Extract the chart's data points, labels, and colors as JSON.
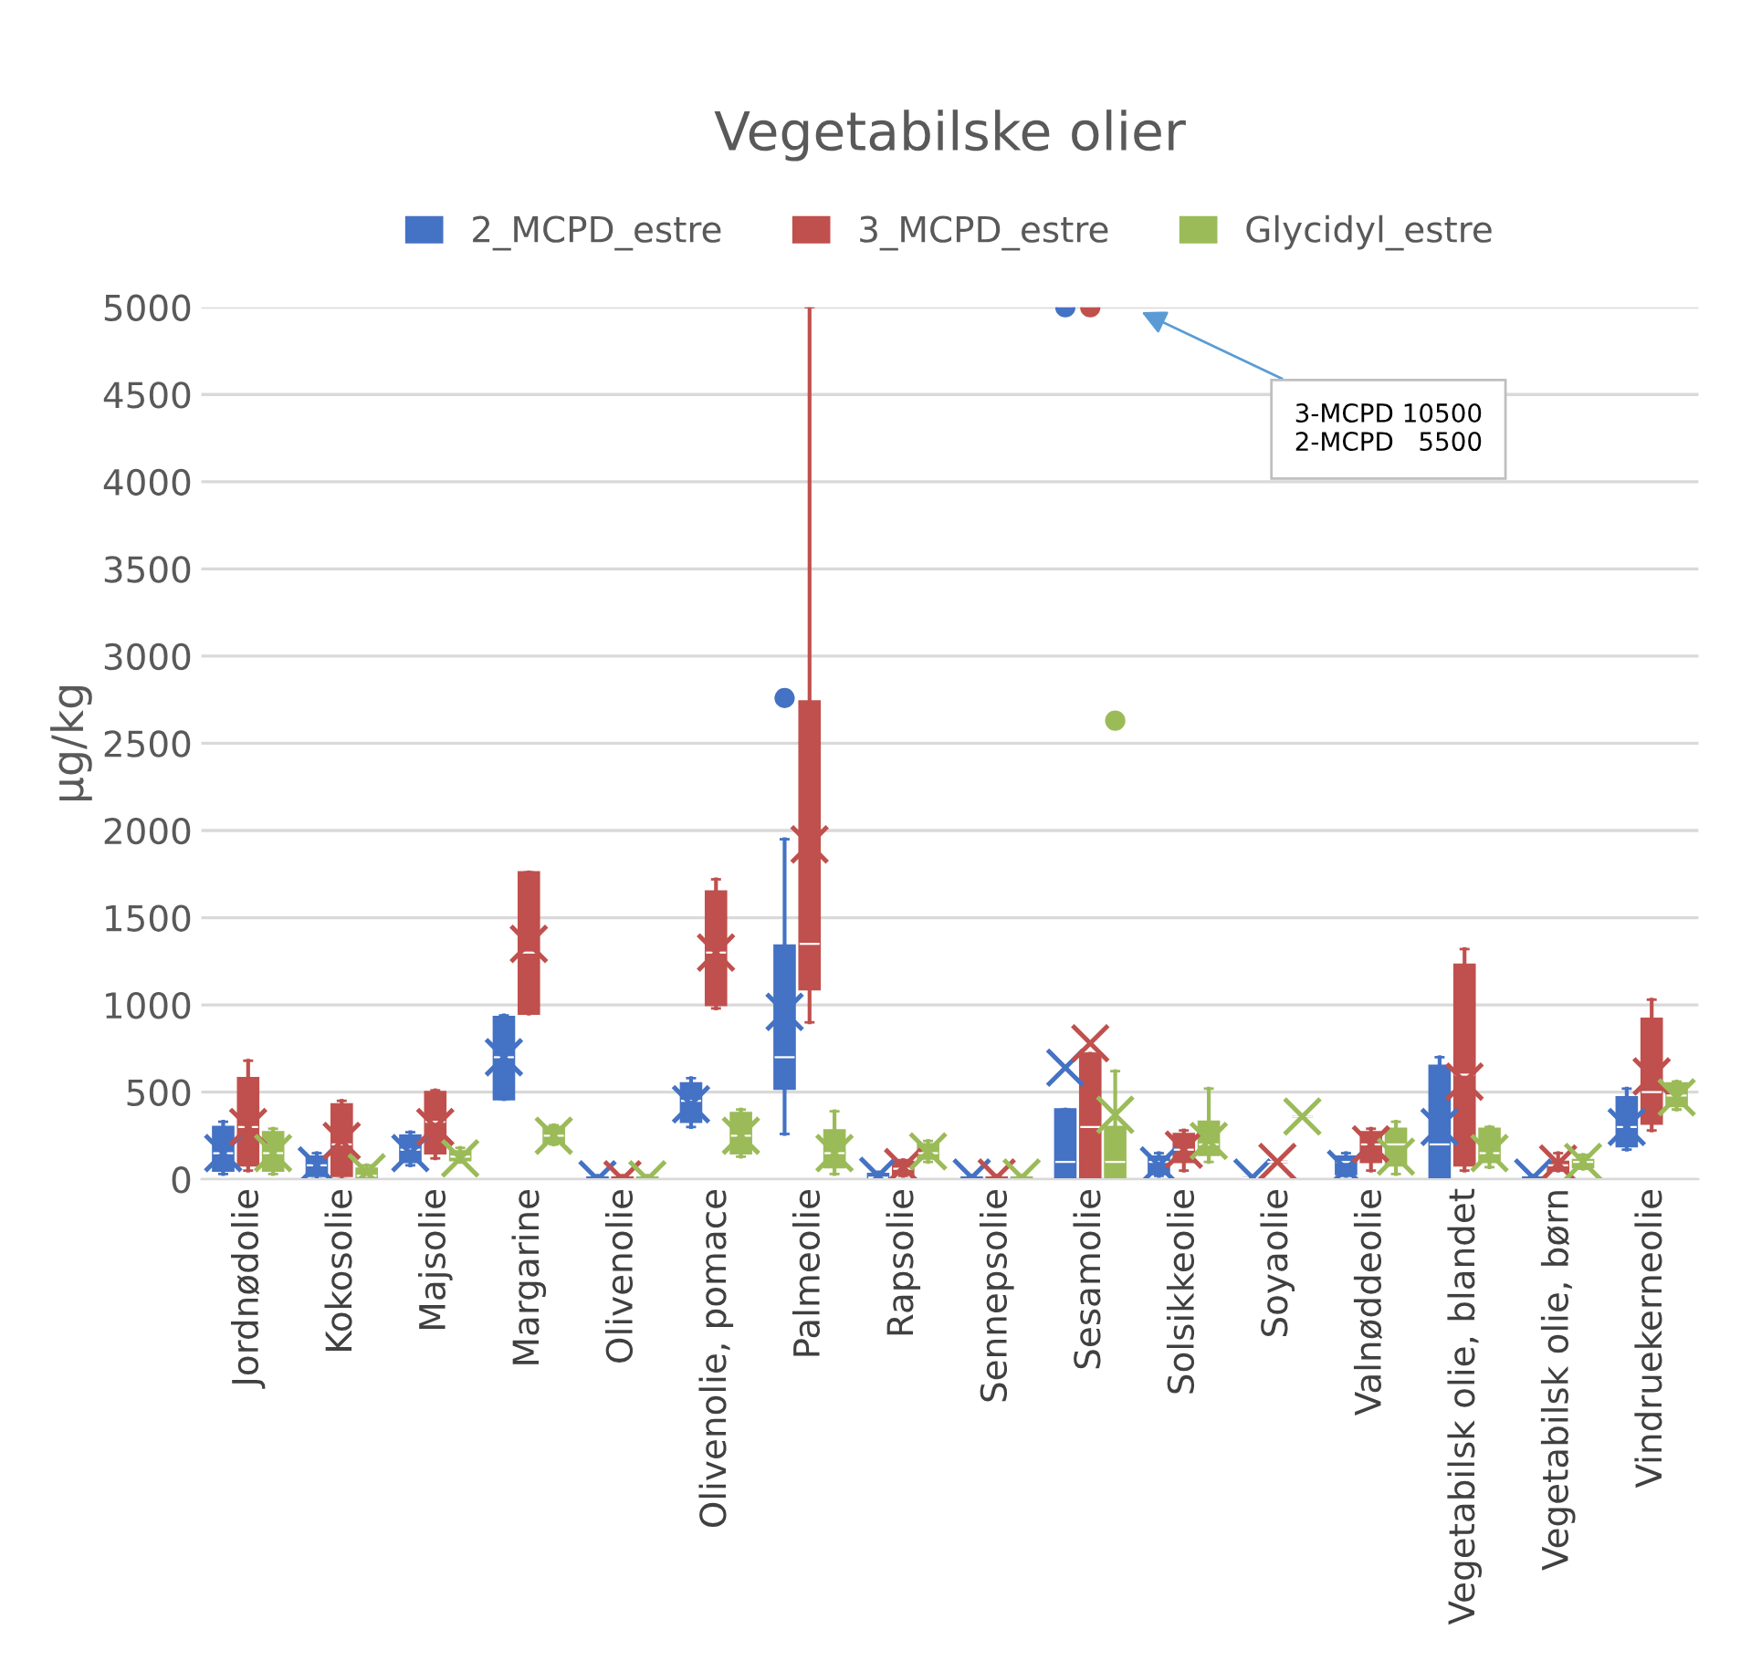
{
  "chart_data": {
    "type": "box",
    "title": "Vegetabilske olier",
    "ylabel": "µg/kg",
    "categories": [
      "Jordnødolie",
      "Kokosolie",
      "Majsolie",
      "Margarine",
      "Olivenolie",
      "Olivenolie, pomace",
      "Palmeolie",
      "Rapsolie",
      "Sennepsolie",
      "Sesamolie",
      "Solsikkeolie",
      "Soyaolie",
      "Valnøddeolie",
      "Vegetabilsk olie, blandet",
      "Vegetabilsk olie, børn",
      "Vindruekerneolie"
    ],
    "ylim": [
      0,
      5000
    ],
    "yticks": [
      0,
      500,
      1000,
      1500,
      2000,
      2500,
      3000,
      3500,
      4000,
      4500,
      5000
    ],
    "grid": "y",
    "legend": "top",
    "marker": "cross",
    "annotations": [
      "3-MCPD 10500\n2-MCPD   5500"
    ],
    "series": [
      {
        "name": "2_MCPD_estre",
        "color": "#4472c4",
        "boxes": [
          {
            "low": 30,
            "q1": 50,
            "median": 150,
            "q3": 300,
            "high": 330,
            "mean": 150
          },
          {
            "low": 0,
            "q1": 20,
            "median": 80,
            "q3": 130,
            "high": 150,
            "mean": 80
          },
          {
            "low": 80,
            "q1": 100,
            "median": 170,
            "q3": 250,
            "high": 270,
            "mean": 150
          },
          {
            "low": 460,
            "q1": 460,
            "median": 700,
            "q3": 930,
            "high": 940,
            "mean": 700
          },
          {
            "low": 0,
            "q1": 0,
            "median": 0,
            "q3": 10,
            "high": 20,
            "mean": 0
          },
          {
            "low": 300,
            "q1": 330,
            "median": 450,
            "q3": 550,
            "high": 580,
            "mean": 430
          },
          {
            "low": 260,
            "q1": 520,
            "median": 700,
            "q3": 1340,
            "high": 1950,
            "mean": 960,
            "outliers": [
              2760
            ]
          },
          {
            "low": 0,
            "q1": 0,
            "median": 10,
            "q3": 30,
            "high": 40,
            "mean": 20
          },
          {
            "low": 0,
            "q1": 0,
            "median": 0,
            "q3": 10,
            "high": 20,
            "mean": 10
          },
          {
            "low": 0,
            "q1": 0,
            "median": 100,
            "q3": 400,
            "high": 400,
            "mean": 640,
            "outliers": [
              5000
            ]
          },
          {
            "low": 20,
            "q1": 30,
            "median": 100,
            "q3": 130,
            "high": 150,
            "mean": 80
          },
          {
            "low": 10,
            "q1": 10,
            "median": 10,
            "q3": 10,
            "high": 10,
            "mean": 10
          },
          {
            "low": 20,
            "q1": 30,
            "median": 100,
            "q3": 130,
            "high": 150,
            "mean": 60
          },
          {
            "low": 0,
            "q1": 0,
            "median": 200,
            "q3": 650,
            "high": 700,
            "mean": 300
          },
          {
            "low": 0,
            "q1": 0,
            "median": 0,
            "q3": 10,
            "high": 20,
            "mean": 10
          },
          {
            "low": 170,
            "q1": 190,
            "median": 300,
            "q3": 470,
            "high": 520,
            "mean": 300
          }
        ]
      },
      {
        "name": "3_MCPD_estre",
        "color": "#c0504d",
        "boxes": [
          {
            "low": 50,
            "q1": 80,
            "median": 300,
            "q3": 580,
            "high": 680,
            "mean": 300
          },
          {
            "low": 0,
            "q1": 20,
            "median": 200,
            "q3": 430,
            "high": 450,
            "mean": 220
          },
          {
            "low": 120,
            "q1": 150,
            "median": 330,
            "q3": 500,
            "high": 510,
            "mean": 300
          },
          {
            "low": 950,
            "q1": 950,
            "median": 1300,
            "q3": 1760,
            "high": 1760,
            "mean": 1350
          },
          {
            "low": 0,
            "q1": 0,
            "median": 0,
            "q3": 10,
            "high": 20,
            "mean": 0
          },
          {
            "low": 980,
            "q1": 1000,
            "median": 1300,
            "q3": 1650,
            "high": 1720,
            "mean": 1300
          },
          {
            "low": 900,
            "q1": 1090,
            "median": 1350,
            "q3": 2740,
            "high": 5000,
            "mean": 1920
          },
          {
            "low": 20,
            "q1": 30,
            "median": 60,
            "q3": 100,
            "high": 110,
            "mean": 70
          },
          {
            "low": 0,
            "q1": 0,
            "median": 0,
            "q3": 10,
            "high": 20,
            "mean": 10
          },
          {
            "low": 0,
            "q1": 0,
            "median": 300,
            "q3": 720,
            "high": 720,
            "mean": 780,
            "outliers": [
              5000
            ]
          },
          {
            "low": 50,
            "q1": 100,
            "median": 170,
            "q3": 260,
            "high": 280,
            "mean": 170
          },
          {
            "low": 100,
            "q1": 100,
            "median": 100,
            "q3": 100,
            "high": 100,
            "mean": 100
          },
          {
            "low": 50,
            "q1": 100,
            "median": 200,
            "q3": 270,
            "high": 290,
            "mean": 200
          },
          {
            "low": 50,
            "q1": 80,
            "median": 600,
            "q3": 1230,
            "high": 1320,
            "mean": 560
          },
          {
            "low": 50,
            "q1": 50,
            "median": 80,
            "q3": 100,
            "high": 150,
            "mean": 90
          },
          {
            "low": 280,
            "q1": 320,
            "median": 500,
            "q3": 920,
            "high": 1030,
            "mean": 590
          }
        ]
      },
      {
        "name": "Glycidyl_estre",
        "color": "#9bbb59",
        "boxes": [
          {
            "low": 30,
            "q1": 50,
            "median": 150,
            "q3": 270,
            "high": 290,
            "mean": 150
          },
          {
            "low": 0,
            "q1": 0,
            "median": 20,
            "q3": 60,
            "high": 80,
            "mean": 40
          },
          {
            "low": 100,
            "q1": 110,
            "median": 130,
            "q3": 160,
            "high": 180,
            "mean": 120
          },
          {
            "low": 200,
            "q1": 210,
            "median": 250,
            "q3": 300,
            "high": 310,
            "mean": 250
          },
          {
            "low": 0,
            "q1": 0,
            "median": 0,
            "q3": 10,
            "high": 20,
            "mean": 0
          },
          {
            "low": 130,
            "q1": 150,
            "median": 250,
            "q3": 380,
            "high": 400,
            "mean": 250
          },
          {
            "low": 30,
            "q1": 70,
            "median": 150,
            "q3": 280,
            "high": 390,
            "mean": 150
          },
          {
            "low": 100,
            "q1": 120,
            "median": 150,
            "q3": 200,
            "high": 220,
            "mean": 160
          },
          {
            "low": 0,
            "q1": 0,
            "median": 0,
            "q3": 10,
            "high": 20,
            "mean": 10
          },
          {
            "low": 0,
            "q1": 0,
            "median": 100,
            "q3": 300,
            "high": 620,
            "mean": 370,
            "outliers": [
              2630
            ]
          },
          {
            "low": 100,
            "q1": 140,
            "median": 200,
            "q3": 330,
            "high": 520,
            "mean": 220
          },
          {
            "low": 360,
            "q1": 360,
            "median": 360,
            "q3": 360,
            "high": 360,
            "mean": 360
          },
          {
            "low": 30,
            "q1": 80,
            "median": 200,
            "q3": 290,
            "high": 330,
            "mean": 130
          },
          {
            "low": 70,
            "q1": 100,
            "median": 150,
            "q3": 290,
            "high": 300,
            "mean": 150
          },
          {
            "low": 60,
            "q1": 70,
            "median": 100,
            "q3": 110,
            "high": 140,
            "mean": 100
          },
          {
            "low": 400,
            "q1": 420,
            "median": 480,
            "q3": 550,
            "high": 560,
            "mean": 470
          }
        ]
      }
    ]
  }
}
